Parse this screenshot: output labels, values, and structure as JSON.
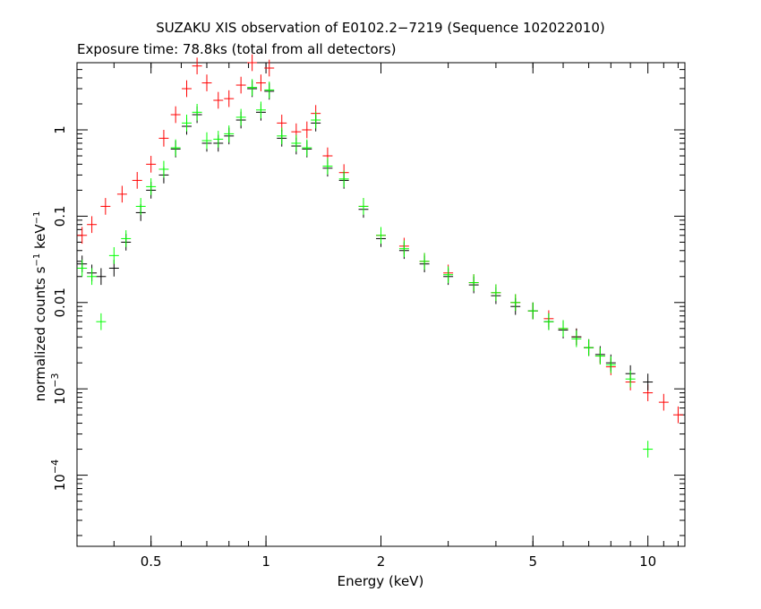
{
  "chart_data": {
    "type": "scatter",
    "title": "SUZAKU XIS observation of E0102.2−7219 (Sequence 102022010)",
    "subtitle": "Exposure time: 78.8ks (total from all detectors)",
    "xlabel": "Energy (keV)",
    "ylabel_main": "normalized counts s",
    "ylabel_exp1": "−1",
    "ylabel_mid": " keV",
    "ylabel_exp2": "−1",
    "x_scale": "log",
    "y_scale": "log",
    "xlim": [
      0.32,
      12.5
    ],
    "ylim": [
      1.5e-05,
      6
    ],
    "x_ticks": [
      0.5,
      1,
      2,
      5,
      10
    ],
    "x_tick_labels": [
      "0.5",
      "1",
      "2",
      "5",
      "10"
    ],
    "y_ticks": [
      {
        "value": 1,
        "base": "1",
        "exp": ""
      },
      {
        "value": 0.1,
        "base": "0.1",
        "exp": ""
      },
      {
        "value": 0.01,
        "base": "0.01",
        "exp": ""
      },
      {
        "value": 0.001,
        "base": "10",
        "exp": "−3"
      },
      {
        "value": 0.0001,
        "base": "10",
        "exp": "−4"
      }
    ],
    "grid": false,
    "series": [
      {
        "color": "#ff0000",
        "x": [
          0.33,
          0.35,
          0.38,
          0.42,
          0.46,
          0.5,
          0.54,
          0.58,
          0.62,
          0.66,
          0.7,
          0.75,
          0.8,
          0.86,
          0.92,
          0.97,
          1.02,
          1.1,
          1.2,
          1.28,
          1.35,
          1.45,
          1.6,
          1.8,
          2.0,
          2.3,
          2.6,
          3.0,
          3.5,
          4.0,
          4.5,
          5.0,
          5.5,
          6.0,
          6.5,
          7.0,
          7.5,
          8.0,
          9.0,
          10.0,
          11.0,
          12.0
        ],
        "y": [
          0.06,
          0.08,
          0.13,
          0.18,
          0.26,
          0.4,
          0.8,
          1.5,
          3.0,
          5.5,
          3.5,
          2.2,
          2.3,
          3.3,
          6.0,
          3.5,
          5.2,
          1.2,
          0.95,
          1.0,
          1.55,
          0.5,
          0.32,
          0.13,
          0.06,
          0.045,
          0.03,
          0.022,
          0.017,
          0.013,
          0.01,
          0.008,
          0.0065,
          0.005,
          0.004,
          0.003,
          0.0024,
          0.0018,
          0.0012,
          0.0009,
          0.0007,
          0.0005
        ]
      },
      {
        "color": "#000000",
        "x": [
          0.33,
          0.35,
          0.37,
          0.4,
          0.43,
          0.47,
          0.5,
          0.54,
          0.58,
          0.62,
          0.66,
          0.7,
          0.75,
          0.8,
          0.86,
          0.92,
          0.97,
          1.02,
          1.1,
          1.2,
          1.28,
          1.35,
          1.45,
          1.6,
          1.8,
          2.0,
          2.3,
          2.6,
          3.0,
          3.5,
          4.0,
          4.5,
          5.0,
          5.5,
          6.0,
          6.5,
          7.0,
          7.5,
          8.0,
          9.0,
          10.0
        ],
        "y": [
          0.028,
          0.022,
          0.02,
          0.025,
          0.05,
          0.11,
          0.2,
          0.3,
          0.6,
          1.1,
          1.5,
          0.7,
          0.7,
          0.85,
          1.3,
          3.0,
          1.6,
          2.8,
          0.8,
          0.65,
          0.6,
          1.2,
          0.36,
          0.26,
          0.12,
          0.055,
          0.04,
          0.028,
          0.02,
          0.016,
          0.012,
          0.009,
          0.008,
          0.006,
          0.0048,
          0.004,
          0.003,
          0.0025,
          0.002,
          0.0015,
          0.0012
        ]
      },
      {
        "color": "#00ff00",
        "x": [
          0.33,
          0.35,
          0.37,
          0.4,
          0.43,
          0.47,
          0.5,
          0.54,
          0.58,
          0.62,
          0.66,
          0.7,
          0.75,
          0.8,
          0.86,
          0.92,
          0.97,
          1.02,
          1.1,
          1.2,
          1.28,
          1.35,
          1.45,
          1.6,
          1.8,
          2.0,
          2.3,
          2.6,
          3.0,
          3.5,
          4.0,
          4.5,
          5.0,
          5.5,
          6.0,
          6.5,
          7.0,
          7.5,
          8.0,
          9.0,
          10.0
        ],
        "y": [
          0.025,
          0.02,
          0.006,
          0.035,
          0.055,
          0.13,
          0.22,
          0.35,
          0.62,
          1.2,
          1.6,
          0.75,
          0.78,
          0.9,
          1.4,
          3.1,
          1.7,
          2.9,
          0.85,
          0.7,
          0.62,
          1.3,
          0.38,
          0.27,
          0.13,
          0.06,
          0.042,
          0.03,
          0.021,
          0.017,
          0.013,
          0.01,
          0.008,
          0.006,
          0.005,
          0.0038,
          0.003,
          0.0024,
          0.0019,
          0.0013,
          0.0002
        ]
      }
    ]
  }
}
